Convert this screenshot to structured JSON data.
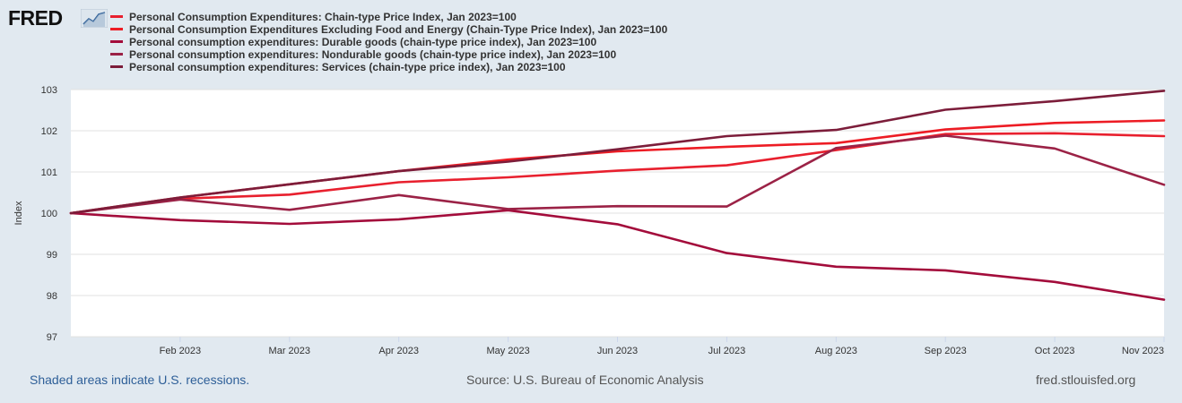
{
  "logo": {
    "text": "FRED",
    "badge_icon": "trend-chart-icon"
  },
  "chart_data": {
    "type": "line",
    "ylabel": "Index",
    "xlabel": "",
    "ylim": [
      97,
      103
    ],
    "yticks": [
      "97",
      "98",
      "99",
      "100",
      "101",
      "102",
      "103"
    ],
    "x": [
      "Jan 2023",
      "Feb 2023",
      "Mar 2023",
      "Apr 2023",
      "May 2023",
      "Jun 2023",
      "Jul 2023",
      "Aug 2023",
      "Sep 2023",
      "Oct 2023",
      "Nov 2023"
    ],
    "xtick_labels": [
      "",
      "Feb 2023",
      "Mar 2023",
      "Apr 2023",
      "May 2023",
      "Jun 2023",
      "Jul 2023",
      "Aug 2023",
      "Sep 2023",
      "Oct 2023",
      "Nov 2023"
    ],
    "grid": true,
    "legend_position": "top-left",
    "series": [
      {
        "name": "Personal Consumption Expenditures: Chain-type Price Index, Jan 2023=100",
        "color": "#e8202e",
        "values": [
          100.0,
          100.35,
          100.45,
          100.75,
          100.87,
          101.03,
          101.16,
          101.53,
          101.92,
          101.94,
          101.87
        ]
      },
      {
        "name": "Personal Consumption Expenditures Excluding Food and Energy (Chain-Type Price Index), Jan 2023=100",
        "color": "#ed1c24",
        "values": [
          100.0,
          100.38,
          100.7,
          101.02,
          101.3,
          101.5,
          101.61,
          101.7,
          102.03,
          102.19,
          102.25
        ]
      },
      {
        "name": "Personal consumption expenditures: Durable goods (chain-type price index), Jan 2023=100",
        "color": "#a30c3b",
        "values": [
          100.0,
          99.83,
          99.74,
          99.85,
          100.07,
          99.73,
          99.03,
          98.7,
          98.61,
          98.33,
          97.9
        ]
      },
      {
        "name": "Personal consumption expenditures: Nondurable goods (chain-type price index), Jan 2023=100",
        "color": "#9b2246",
        "values": [
          100.0,
          100.33,
          100.08,
          100.44,
          100.1,
          100.17,
          100.16,
          101.58,
          101.88,
          101.57,
          100.69
        ]
      },
      {
        "name": "Personal consumption expenditures: Services (chain-type price index), Jan 2023=100",
        "color": "#7c1d3a",
        "values": [
          100.0,
          100.38,
          100.7,
          101.02,
          101.25,
          101.55,
          101.87,
          102.02,
          102.51,
          102.72,
          102.97
        ]
      }
    ]
  },
  "footer": {
    "recession_note": "Shaded areas indicate U.S. recessions.",
    "source": "Source: U.S. Bureau of Economic Analysis",
    "site": "fred.stlouisfed.org"
  }
}
